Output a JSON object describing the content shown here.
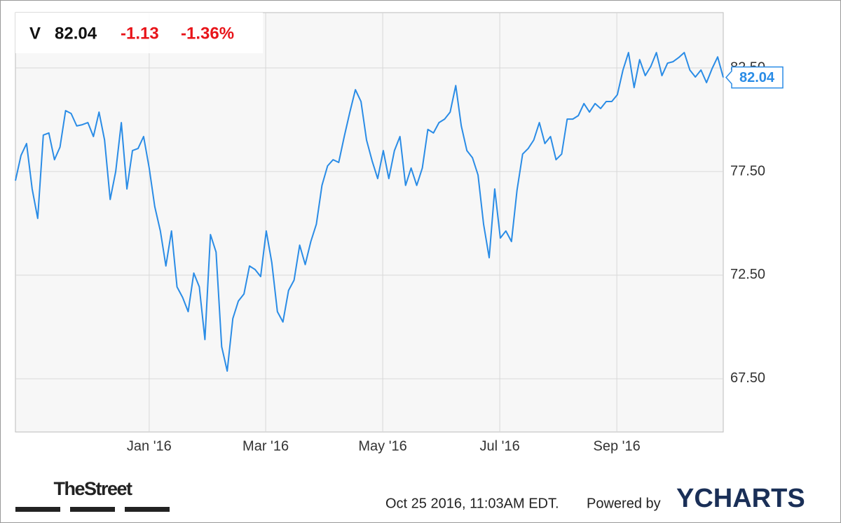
{
  "chart_data": {
    "type": "line",
    "header": {
      "symbol": "V",
      "change": "-1.13",
      "change_percent": "-1.36%"
    },
    "categories_note_free": null,
    "series": [
      {
        "name": "V",
        "color": "#2a8ce6",
        "values": [
          77.06,
          78.28,
          78.85,
          76.66,
          75.24,
          79.26,
          79.36,
          78.07,
          78.68,
          80.44,
          80.3,
          79.7,
          79.76,
          79.86,
          79.19,
          80.37,
          79.02,
          76.15,
          77.5,
          79.86,
          76.66,
          78.51,
          78.61,
          79.19,
          77.67,
          75.81,
          74.63,
          72.94,
          74.63,
          71.93,
          71.42,
          70.74,
          72.6,
          71.93,
          69.39,
          74.46,
          73.61,
          69.05,
          67.87,
          70.4,
          71.25,
          71.59,
          72.94,
          72.77,
          72.43,
          74.63,
          73.11,
          70.74,
          70.24,
          71.76,
          72.26,
          73.95,
          73.01,
          74.12,
          74.96,
          76.83,
          77.77,
          78.07,
          77.94,
          79.19,
          80.37,
          81.45,
          80.88,
          79.02,
          78.01,
          77.16,
          78.51,
          77.16,
          78.51,
          79.19,
          76.83,
          77.67,
          76.83,
          77.67,
          79.53,
          79.36,
          79.86,
          80.03,
          80.37,
          81.65,
          79.7,
          78.51,
          78.17,
          77.33,
          74.96,
          73.34,
          76.66,
          74.29,
          74.63,
          74.12,
          76.59,
          78.34,
          78.61,
          79.02,
          79.86,
          78.85,
          79.19,
          78.07,
          78.34,
          80.03,
          80.03,
          80.2,
          80.78,
          80.37,
          80.78,
          80.54,
          80.88,
          80.88,
          81.21,
          82.4,
          83.24,
          81.55,
          82.9,
          82.13,
          82.57,
          83.24,
          82.13,
          82.73,
          82.8,
          83.0,
          83.24,
          82.4,
          82.06,
          82.4,
          81.79,
          82.47,
          83.03,
          82.04
        ]
      }
    ],
    "xlim": [
      0,
      127
    ],
    "xticks": [
      {
        "value": 24,
        "label": "Jan '16"
      },
      {
        "value": 44.9,
        "label": "Mar '16"
      },
      {
        "value": 65.9,
        "label": "May '16"
      },
      {
        "value": 86.9,
        "label": "Jul '16"
      },
      {
        "value": 107.9,
        "label": "Sep '16"
      }
    ],
    "ylim": [
      64.93,
      85.17
    ],
    "yticks": [
      {
        "value": 67.5,
        "label": "67.50"
      },
      {
        "value": 72.5,
        "label": "72.50"
      },
      {
        "value": 77.5,
        "label": "77.50"
      },
      {
        "value": 82.5,
        "label": "82.50"
      }
    ],
    "grid": true,
    "footer": {
      "brand": "TheStreet",
      "timestamp": "Oct 25 2016, 11:03AM EDT.",
      "powered_by": "Powered by",
      "logo": "YCHARTS"
    }
  }
}
